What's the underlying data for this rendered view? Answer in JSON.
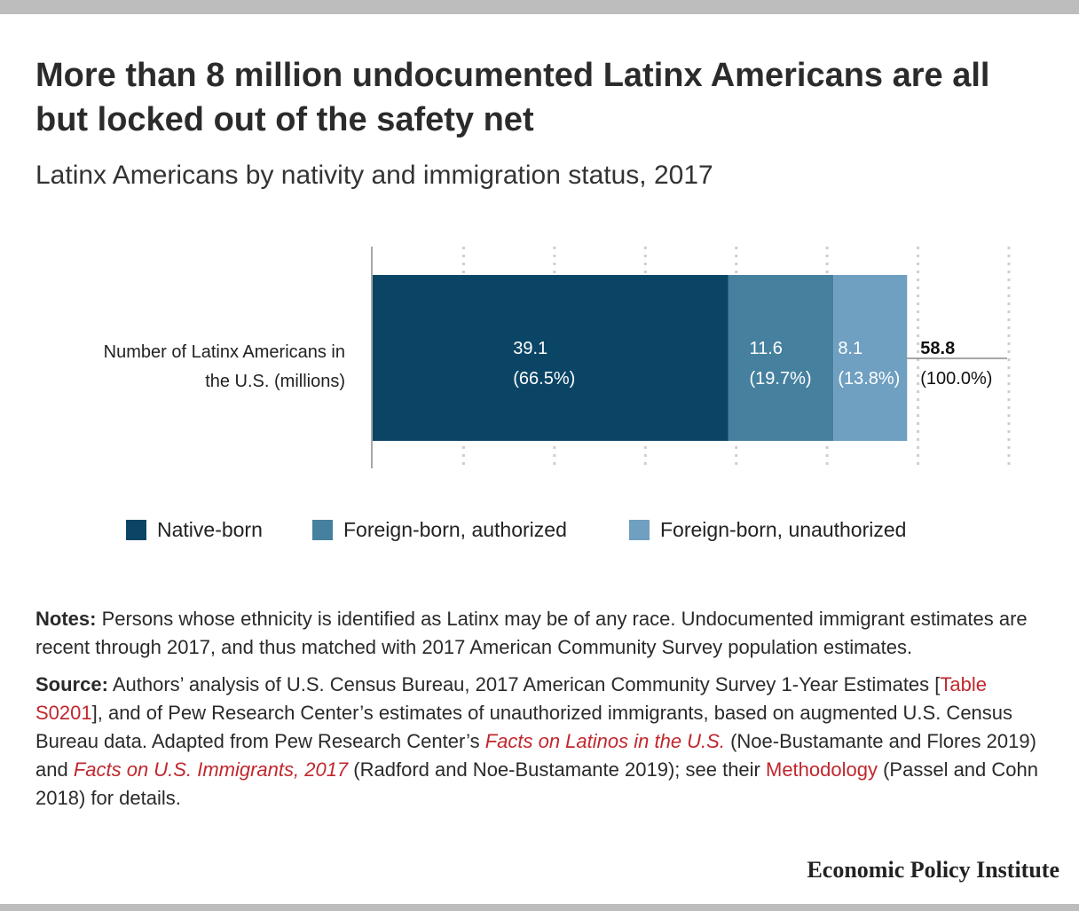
{
  "header": {
    "title": "More than 8 million undocumented Latinx Americans are all but locked out of the safety net",
    "subtitle": "Latinx Americans by nativity and immigration status, 2017"
  },
  "chart_data": {
    "type": "bar",
    "orientation": "horizontal",
    "stacked": true,
    "categories": [
      "Number of Latinx Americans in the U.S. (millions)"
    ],
    "category_label_lines": [
      "Number of Latinx Americans in",
      "the U.S. (millions)"
    ],
    "series": [
      {
        "name": "Native-born",
        "values": [
          39.1
        ],
        "label": "39.1",
        "share": "(66.5%)",
        "color": "#0b4566"
      },
      {
        "name": "Foreign-born, authorized",
        "values": [
          11.6
        ],
        "label": "11.6",
        "share": "(19.7%)",
        "color": "#46809f"
      },
      {
        "name": "Foreign-born, unauthorized",
        "values": [
          8.1
        ],
        "label": "8.1",
        "share": "(13.8%)",
        "color": "#6f9fc1"
      }
    ],
    "total": {
      "value": "58.8",
      "share": "(100.0%)"
    },
    "xlim": [
      0,
      70
    ],
    "grid": true,
    "legend_position": "bottom"
  },
  "notes": {
    "notes_label": "Notes:",
    "notes_text": " Persons whose ethnicity is identified as Latinx may be of any race. Undocumented immigrant estimates are recent through 2017, and thus matched with 2017 American Community Survey population estimates.",
    "source_label": "Source:",
    "source_1": " Authors’ analysis of U.S. Census Bureau, 2017 American Community Survey 1-Year Estimates [",
    "source_link_1": "Table S0201",
    "source_2": "], and of Pew Research Center’s estimates of unauthorized immigrants, based on augmented U.S. Census Bureau data. Adapted from Pew Research Center’s ",
    "source_link_2": "Facts on Latinos in the U.S.",
    "source_3": " (Noe-Bustamante and Flores 2019) and ",
    "source_link_3": "Facts on U.S. Immigrants, 2017",
    "source_4": " (Radford and Noe-Bustamante 2019); see their ",
    "source_link_4": "Methodology",
    "source_5": " (Passel and Cohn 2018) for details."
  },
  "footer": {
    "brand": "Economic Policy Institute"
  }
}
